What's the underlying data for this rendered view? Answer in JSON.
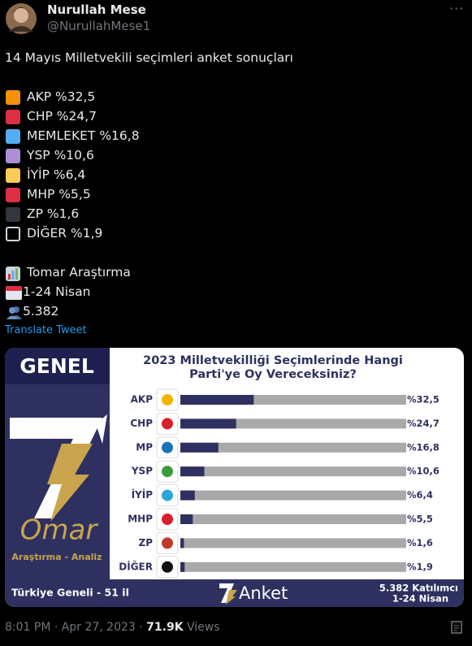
{
  "tweet": {
    "name": "Nurullah Mese",
    "handle": "@NurullahMese1",
    "headline": "14 Mayıs Milletvekili seçimleri anket sonuçları",
    "results": [
      {
        "text": "AKP %32,5",
        "color": "#f4900c"
      },
      {
        "text": "CHP %24,7",
        "color": "#dd2e44"
      },
      {
        "text": "MEMLEKET %16,8",
        "color": "#55acee"
      },
      {
        "text": "YSP %10,6",
        "color": "#aa8ed6"
      },
      {
        "text": "İYİP %6,4",
        "color": "#fdcb58"
      },
      {
        "text": "MHP %5,5",
        "color": "#dd2e44"
      },
      {
        "text": "ZP %1,6",
        "color": "#31373d"
      },
      {
        "text": "DİĞER %1,9",
        "color": "#000000"
      }
    ],
    "source": "Tomar Araştırma",
    "dates": "1-24 Nisan",
    "participants": "5.382",
    "translate": "Translate Tweet",
    "time": "8:01 PM",
    "date": "Apr 27, 2023",
    "views": "71.9K",
    "views_label": "Views"
  },
  "image": {
    "panel_title": "GENEL",
    "brand": "Omar",
    "brand_sub": "Araştırma - Analiz",
    "footer_left": "Türkiye Geneli - 51 il",
    "footer_brand": "Anket",
    "footer_right": [
      "5.382 Katılımcı",
      "1-24 Nisan"
    ]
  },
  "chart_data": {
    "type": "bar",
    "orientation": "horizontal",
    "title": [
      "2023 Milletvekilliği Seçimlerinde Hangi",
      "Parti'ye Oy Vereceksiniz?"
    ],
    "categories": [
      "AKP",
      "CHP",
      "MP",
      "YSP",
      "İYİP",
      "MHP",
      "ZP",
      "DİĞER"
    ],
    "values": [
      32.5,
      24.7,
      16.8,
      10.6,
      6.4,
      5.5,
      1.6,
      1.9
    ],
    "value_labels": [
      "%32,5",
      "%24,7",
      "%16,8",
      "%10,6",
      "%6,4",
      "%5,5",
      "%1,6",
      "%1,9"
    ],
    "xlim": [
      0,
      100
    ],
    "color": "#2e3160",
    "track_color": "#a9a9a9"
  }
}
